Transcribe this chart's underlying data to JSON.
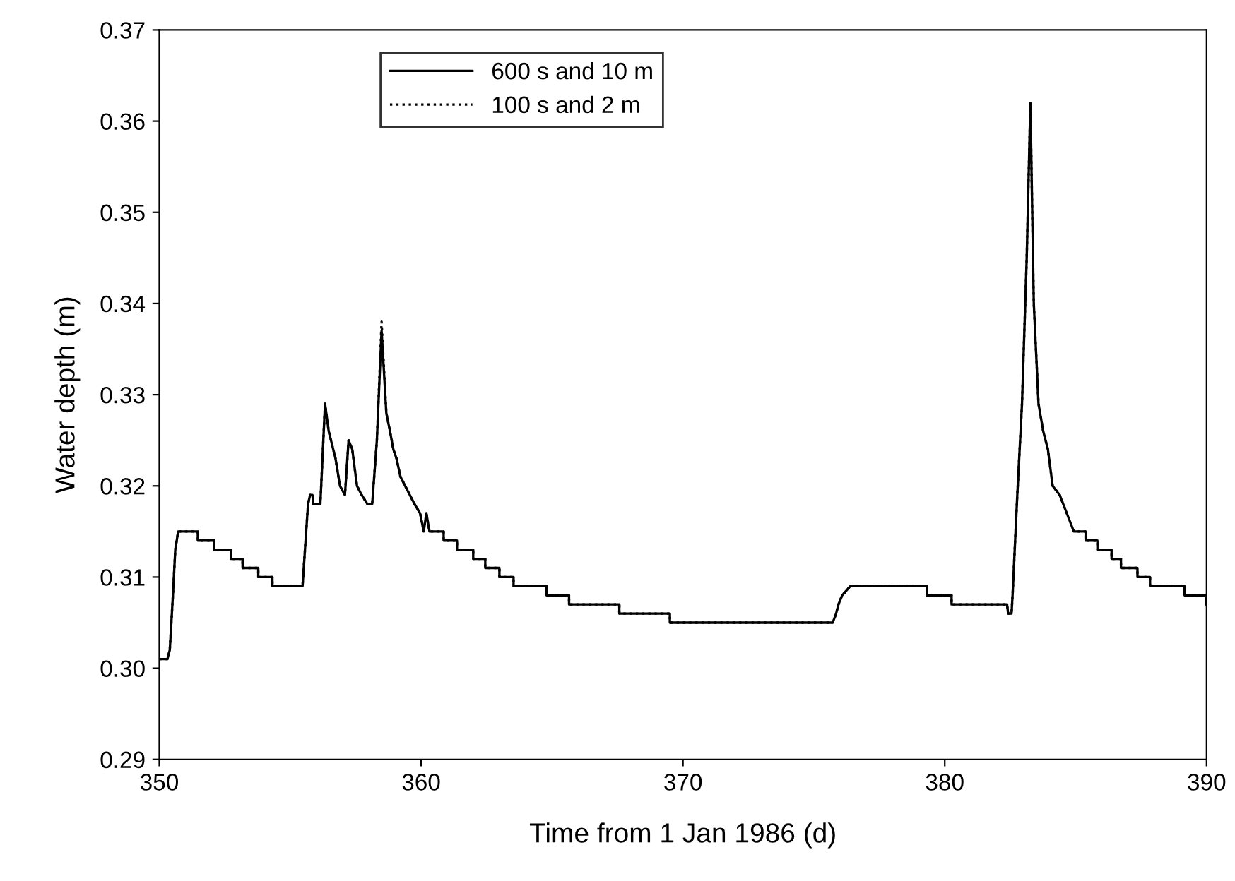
{
  "chart_data": {
    "type": "line",
    "xlabel": "Time from 1 Jan 1986 (d)",
    "ylabel": "Water depth (m)",
    "xlim": [
      350,
      390
    ],
    "xticks": [
      350,
      360,
      370,
      380,
      390
    ],
    "ylim": [
      0.29,
      0.37
    ],
    "yticks": [
      {
        "value": 0.29,
        "label": "0.29"
      },
      {
        "value": 0.3,
        "label": "0.30"
      },
      {
        "value": 0.31,
        "label": "0.31"
      },
      {
        "value": 0.32,
        "label": "0.32"
      },
      {
        "value": 0.33,
        "label": "0.33"
      },
      {
        "value": 0.34,
        "label": "0.34"
      },
      {
        "value": 0.35,
        "label": "0.35"
      },
      {
        "value": 0.36,
        "label": "0.36"
      },
      {
        "value": 0.37,
        "label": "0.37"
      }
    ],
    "x": [
      350,
      350.31,
      350.4,
      350.52,
      350.61,
      350.72,
      351.47,
      351.47,
      352.1,
      352.1,
      352.73,
      352.73,
      353.18,
      353.18,
      353.78,
      353.78,
      354.32,
      354.32,
      355.47,
      355.61,
      355.68,
      355.76,
      355.85,
      355.88,
      356.15,
      356.33,
      356.47,
      356.6,
      356.73,
      356.9,
      357.09,
      357.23,
      357.37,
      357.55,
      357.73,
      357.95,
      358.13,
      358.31,
      358.49,
      358.67,
      358.81,
      358.94,
      359.06,
      359.21,
      359.39,
      359.57,
      359.75,
      359.96,
      360.1,
      360.2,
      360.32,
      360.86,
      360.86,
      361.37,
      361.37,
      361.99,
      361.99,
      362.45,
      362.45,
      362.99,
      362.99,
      363.53,
      363.53,
      364.79,
      364.79,
      365.65,
      365.65,
      367.57,
      367.57,
      369.5,
      369.5,
      375.72,
      375.85,
      375.94,
      376.08,
      376.39,
      379.32,
      379.32,
      380.26,
      380.26,
      382.38,
      382.42,
      382.55,
      382.59,
      382.77,
      382.95,
      383.13,
      383.27,
      383.4,
      383.58,
      383.76,
      383.94,
      384.12,
      384.39,
      384.66,
      384.93,
      385.38,
      385.38,
      385.83,
      385.83,
      386.37,
      386.37,
      386.73,
      386.73,
      387.36,
      387.36,
      387.84,
      387.84,
      389.16,
      389.16,
      389.97,
      389.97,
      390
    ],
    "series": [
      {
        "name": "600 s and 10 m",
        "color": "#000000",
        "line_style": "solid",
        "values": [
          0.301,
          0.301,
          0.302,
          0.308,
          0.313,
          0.315,
          0.315,
          0.314,
          0.314,
          0.313,
          0.313,
          0.312,
          0.312,
          0.311,
          0.311,
          0.31,
          0.31,
          0.309,
          0.309,
          0.315,
          0.318,
          0.319,
          0.319,
          0.318,
          0.318,
          0.329,
          0.326,
          0.3245,
          0.323,
          0.32,
          0.319,
          0.325,
          0.324,
          0.32,
          0.319,
          0.318,
          0.318,
          0.325,
          0.337,
          0.328,
          0.326,
          0.324,
          0.323,
          0.321,
          0.32,
          0.319,
          0.318,
          0.317,
          0.315,
          0.317,
          0.315,
          0.315,
          0.314,
          0.314,
          0.313,
          0.313,
          0.312,
          0.312,
          0.311,
          0.311,
          0.31,
          0.31,
          0.309,
          0.309,
          0.308,
          0.308,
          0.307,
          0.307,
          0.306,
          0.306,
          0.305,
          0.305,
          0.306,
          0.307,
          0.308,
          0.309,
          0.309,
          0.308,
          0.308,
          0.307,
          0.307,
          0.306,
          0.306,
          0.308,
          0.319,
          0.329,
          0.345,
          0.362,
          0.34,
          0.329,
          0.326,
          0.324,
          0.32,
          0.319,
          0.317,
          0.315,
          0.315,
          0.314,
          0.314,
          0.313,
          0.313,
          0.312,
          0.312,
          0.311,
          0.311,
          0.31,
          0.31,
          0.309,
          0.309,
          0.308,
          0.308,
          0.307,
          0.307
        ]
      },
      {
        "name": "100 s and 2 m",
        "color": "#000000",
        "line_style": "dotted",
        "values": [
          0.301,
          0.301,
          0.302,
          0.308,
          0.313,
          0.315,
          0.315,
          0.314,
          0.314,
          0.313,
          0.313,
          0.312,
          0.312,
          0.311,
          0.311,
          0.31,
          0.31,
          0.309,
          0.309,
          0.315,
          0.318,
          0.319,
          0.319,
          0.318,
          0.318,
          0.329,
          0.326,
          0.3245,
          0.323,
          0.32,
          0.319,
          0.325,
          0.324,
          0.32,
          0.319,
          0.318,
          0.318,
          0.325,
          0.338,
          0.328,
          0.326,
          0.324,
          0.323,
          0.321,
          0.32,
          0.319,
          0.318,
          0.317,
          0.315,
          0.317,
          0.315,
          0.315,
          0.314,
          0.314,
          0.313,
          0.313,
          0.312,
          0.312,
          0.311,
          0.311,
          0.31,
          0.31,
          0.309,
          0.309,
          0.308,
          0.308,
          0.307,
          0.307,
          0.306,
          0.306,
          0.305,
          0.305,
          0.306,
          0.307,
          0.308,
          0.309,
          0.309,
          0.308,
          0.308,
          0.307,
          0.307,
          0.306,
          0.306,
          0.308,
          0.319,
          0.329,
          0.345,
          0.362,
          0.34,
          0.329,
          0.326,
          0.324,
          0.32,
          0.319,
          0.317,
          0.315,
          0.315,
          0.314,
          0.314,
          0.313,
          0.313,
          0.312,
          0.312,
          0.311,
          0.311,
          0.31,
          0.31,
          0.309,
          0.309,
          0.308,
          0.308,
          0.307,
          0.307
        ]
      }
    ],
    "legend": "top left",
    "grid": false,
    "marker": "none"
  }
}
